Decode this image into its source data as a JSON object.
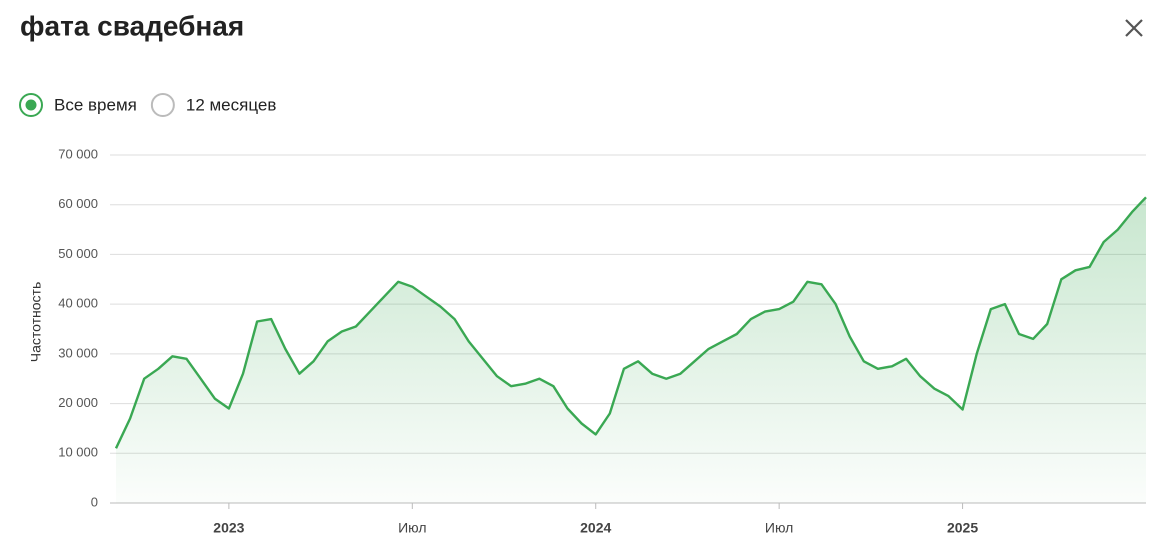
{
  "chart_data": {
    "type": "line",
    "title": "фата свадебная",
    "ylabel": "Частотность",
    "categories": [
      null,
      null,
      null,
      null,
      null,
      null,
      null,
      null,
      "2023",
      null,
      null,
      null,
      null,
      null,
      null,
      null,
      null,
      null,
      null,
      null,
      null,
      "Июл",
      null,
      null,
      null,
      null,
      null,
      null,
      null,
      null,
      null,
      null,
      null,
      null,
      "2024",
      null,
      null,
      null,
      null,
      null,
      null,
      null,
      null,
      null,
      null,
      null,
      null,
      "Июл",
      null,
      null,
      null,
      null,
      null,
      null,
      null,
      null,
      null,
      null,
      null,
      null,
      "2025",
      null,
      null,
      null,
      null,
      null,
      null,
      null,
      null,
      null,
      null,
      null,
      null,
      null
    ],
    "series": [
      {
        "name": "Частотность",
        "color": "#3aa853",
        "values": [
          11000,
          17000,
          25000,
          27000,
          29500,
          29000,
          25000,
          21000,
          19000,
          26000,
          36500,
          37000,
          31000,
          26000,
          28500,
          32500,
          34500,
          35500,
          38500,
          41500,
          44500,
          43500,
          41500,
          39500,
          37000,
          32500,
          29000,
          25500,
          23500,
          24000,
          25000,
          23500,
          19000,
          16000,
          13800,
          18000,
          27000,
          28500,
          26000,
          25000,
          26000,
          28500,
          31000,
          32500,
          34000,
          37000,
          38500,
          39000,
          40500,
          44500,
          44000,
          40000,
          33500,
          28500,
          27000,
          27500,
          29000,
          25500,
          23000,
          21500,
          18800,
          30000,
          39000,
          40000,
          34000,
          33000,
          36000,
          45000,
          46800,
          47500,
          52500,
          55000,
          58500,
          61500
        ]
      }
    ],
    "ylim": [
      0,
      70000
    ],
    "yticks": [
      0,
      {
        "value": 10000,
        "label": "10 000"
      },
      {
        "value": 20000,
        "label": "20 000"
      },
      {
        "value": 30000,
        "label": "30 000"
      },
      {
        "value": 40000,
        "label": "40 000"
      },
      {
        "value": 50000,
        "label": "50 000"
      },
      {
        "value": 60000,
        "label": "60 000"
      },
      {
        "value": 70000,
        "label": "70 000"
      }
    ],
    "grid": true
  },
  "controls": {
    "options": [
      {
        "label": "Все время",
        "selected": true
      },
      {
        "label": "12 месяцев",
        "selected": false
      }
    ]
  }
}
